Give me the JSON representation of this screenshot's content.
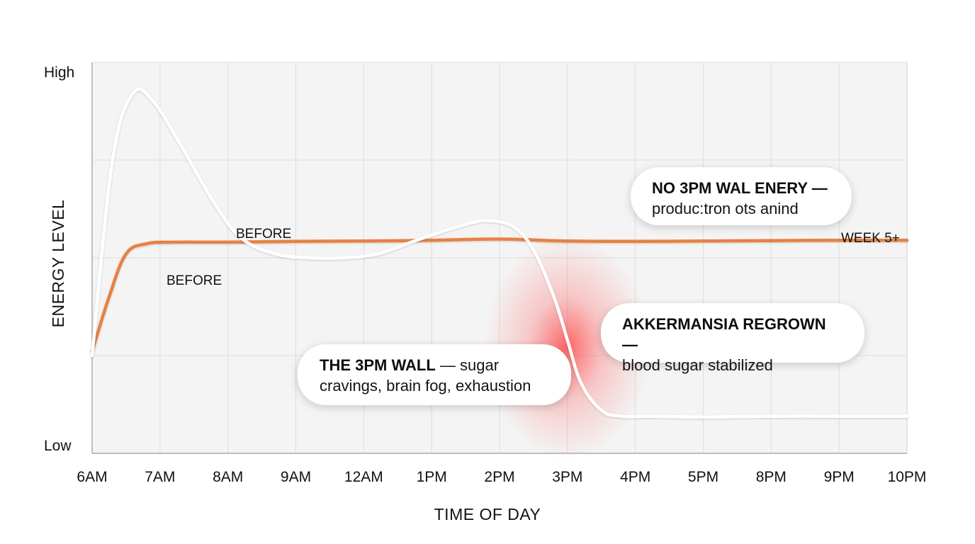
{
  "chart_data": {
    "type": "line",
    "title": "",
    "xlabel": "TIME OF DAY",
    "ylabel": "ENERGY LEVEL",
    "y_ticks": [
      "High",
      "Low"
    ],
    "categories": [
      "6AM",
      "7AM",
      "8AM",
      "9AM",
      "12AM",
      "1PM",
      "2PM",
      "3PM",
      "4PM",
      "5PM",
      "8PM",
      "9PM",
      "10PM"
    ],
    "grid": true,
    "series": [
      {
        "name": "BEFORE",
        "color": "#ffffff",
        "x": [
          0,
          0.3,
          0.6,
          0.9,
          1.3,
          1.8,
          2.2,
          2.7,
          3.2,
          3.7,
          4.2,
          4.7,
          5.2,
          5.6,
          5.85,
          6.2,
          6.5,
          6.8,
          7.0,
          7.2,
          7.5,
          7.8,
          8.2,
          9.0,
          10.0,
          11.0,
          12.0
        ],
        "y": [
          0.25,
          0.75,
          0.92,
          0.9,
          0.79,
          0.64,
          0.55,
          0.51,
          0.5,
          0.5,
          0.51,
          0.54,
          0.57,
          0.59,
          0.595,
          0.58,
          0.52,
          0.4,
          0.29,
          0.18,
          0.11,
          0.095,
          0.095,
          0.093,
          0.095,
          0.095,
          0.095
        ]
      },
      {
        "name": "WEEK 5+",
        "color": "#e8813f",
        "x": [
          0,
          0.25,
          0.5,
          0.8,
          1.2,
          2.0,
          3.0,
          4.0,
          5.0,
          6.0,
          7.0,
          8.0,
          9.0,
          10.0,
          11.0,
          12.0
        ],
        "y": [
          0.26,
          0.4,
          0.51,
          0.536,
          0.54,
          0.54,
          0.542,
          0.543,
          0.545,
          0.548,
          0.543,
          0.542,
          0.543,
          0.544,
          0.545,
          0.545
        ]
      }
    ],
    "series_labels": [
      "BEFORE",
      "BEFORE",
      "WEEK 5+"
    ],
    "highlight": {
      "x_center": 7.0,
      "y_center": 0.28,
      "color": "#ff3b3b"
    },
    "annotations": [
      {
        "bold": "NO 3PM WAL ENERY —",
        "text": "produc:tron ots anind"
      },
      {
        "bold": "AKKERMANSIA REGROWN —",
        "text": "blood sugar stabilized"
      },
      {
        "bold": "THE 3PM WALL",
        "text": " — sugar",
        "text2": "cravings, brain fog, exhaustion"
      }
    ]
  }
}
